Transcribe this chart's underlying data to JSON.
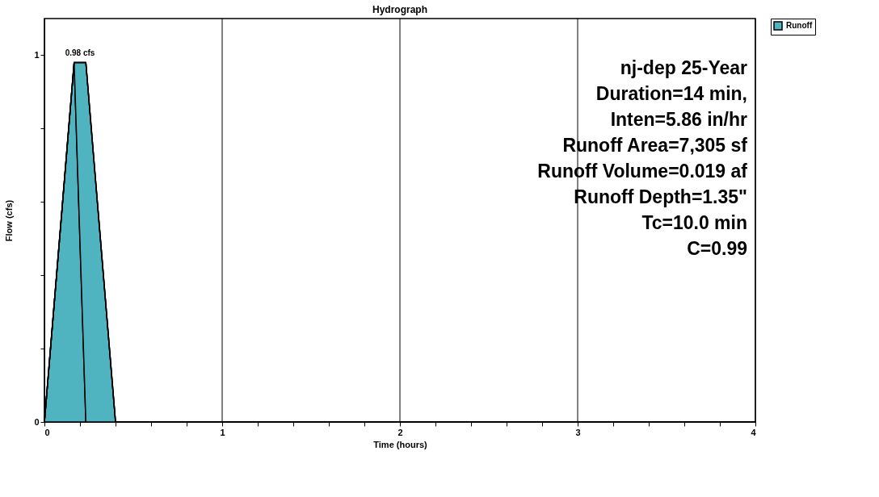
{
  "chart_data": {
    "type": "area",
    "title": "Hydrograph",
    "xlabel": "Time  (hours)",
    "ylabel": "Flow  (cfs)",
    "x": [
      0,
      0.167,
      0.233,
      0.4,
      4
    ],
    "series": [
      {
        "name": "Runoff",
        "color": "#4fb3c0",
        "values": [
          0,
          0.98,
          0.98,
          0,
          0
        ]
      }
    ],
    "xlim": [
      0,
      4
    ],
    "xticks": [
      0,
      {
        "value": 0.2,
        "label": null
      },
      {
        "value": 0.4,
        "label": null
      },
      {
        "value": 0.6,
        "label": null
      },
      {
        "value": 0.8,
        "label": null
      },
      1,
      {
        "value": 1.2,
        "label": null
      },
      {
        "value": 1.4,
        "label": null
      },
      {
        "value": 1.6,
        "label": null
      },
      {
        "value": 1.8,
        "label": null
      },
      2,
      {
        "value": 2.2,
        "label": null
      },
      {
        "value": 2.4,
        "label": null
      },
      {
        "value": 2.6,
        "label": null
      },
      {
        "value": 2.8,
        "label": null
      },
      3,
      {
        "value": 3.2,
        "label": null
      },
      {
        "value": 3.4,
        "label": null
      },
      {
        "value": 3.6,
        "label": null
      },
      {
        "value": 3.8,
        "label": null
      },
      4
    ],
    "ylim": [
      0,
      1.1
    ],
    "yticks": [
      0,
      {
        "value": 0.2,
        "label": null
      },
      {
        "value": 0.4,
        "label": null
      },
      {
        "value": 0.6,
        "label": null
      },
      {
        "value": 0.8,
        "label": null
      },
      1
    ],
    "grid": "x",
    "legend": "top right",
    "annotations": [
      {
        "text": "0.98 cfs",
        "x": 0.2,
        "y": 0.98
      },
      "nj-dep 25-Year",
      "Duration=14 min,",
      "Inten=5.86 in/hr",
      "Runoff Area=7,305 sf",
      "Runoff Volume=0.019 af",
      "Runoff Depth=1.35\"",
      "Tc=10.0 min",
      "C=0.99"
    ]
  }
}
